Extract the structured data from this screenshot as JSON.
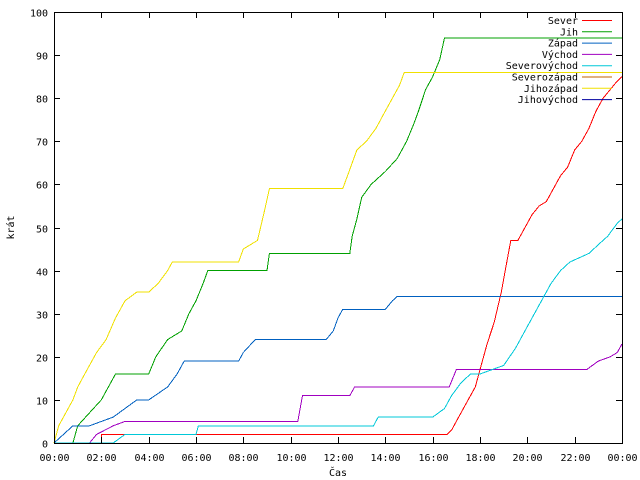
{
  "chart_data": {
    "type": "line",
    "title": "",
    "xlabel": "Čas",
    "ylabel": "krát",
    "xlim": [
      0,
      24
    ],
    "ylim": [
      0,
      100
    ],
    "yticks": [
      0,
      10,
      20,
      30,
      40,
      50,
      60,
      70,
      80,
      90,
      100
    ],
    "xticks": [
      {
        "x": 0,
        "label": "00:00"
      },
      {
        "x": 2,
        "label": "02:00"
      },
      {
        "x": 4,
        "label": "04:00"
      },
      {
        "x": 6,
        "label": "06:00"
      },
      {
        "x": 8,
        "label": "08:00"
      },
      {
        "x": 10,
        "label": "10:00"
      },
      {
        "x": 12,
        "label": "12:00"
      },
      {
        "x": 14,
        "label": "14:00"
      },
      {
        "x": 16,
        "label": "16:00"
      },
      {
        "x": 18,
        "label": "18:00"
      },
      {
        "x": 20,
        "label": "20:00"
      },
      {
        "x": 22,
        "label": "22:00"
      },
      {
        "x": 24,
        "label": "00:00"
      }
    ],
    "grid": false,
    "legend_position": "top-right",
    "series": [
      {
        "name": "Sever",
        "color": "#ff0000",
        "x": [
          0.0,
          2.0,
          2.0,
          16.6,
          16.8,
          17.0,
          17.3,
          17.6,
          17.8,
          18.0,
          18.3,
          18.6,
          18.9,
          19.1,
          19.3,
          19.6,
          19.9,
          20.2,
          20.5,
          20.8,
          21.1,
          21.4,
          21.7,
          22.0,
          22.3,
          22.6,
          22.9,
          23.2,
          23.5,
          23.8,
          24.0
        ],
        "y": [
          0,
          0,
          2,
          2,
          3,
          5,
          8,
          11,
          13,
          17,
          23,
          28,
          35,
          41,
          47,
          47,
          50,
          53,
          55,
          56,
          59,
          62,
          64,
          68,
          70,
          73,
          77,
          80,
          82,
          84,
          85
        ]
      },
      {
        "name": "Jih",
        "color": "#00a000",
        "x": [
          0.0,
          0.8,
          1.0,
          1.5,
          2.0,
          2.6,
          4.0,
          4.3,
          4.8,
          5.4,
          5.7,
          6.0,
          6.3,
          6.5,
          9.0,
          9.1,
          12.5,
          12.6,
          12.8,
          13.0,
          13.4,
          13.8,
          14.0,
          14.5,
          14.9,
          15.2,
          15.4,
          15.7,
          16.0,
          16.3,
          16.5,
          24.0
        ],
        "y": [
          0,
          0,
          4,
          7,
          10,
          16,
          16,
          20,
          24,
          26,
          30,
          33,
          37,
          40,
          40,
          44,
          44,
          48,
          52,
          57,
          60,
          62,
          63,
          66,
          70,
          74,
          77,
          82,
          85,
          89,
          94,
          94
        ]
      },
      {
        "name": "Západ",
        "color": "#0060c0",
        "x": [
          0.0,
          0.4,
          0.8,
          1.5,
          2.5,
          3.0,
          3.5,
          4.0,
          4.8,
          5.2,
          5.5,
          7.8,
          8.0,
          8.5,
          9.0,
          11.5,
          11.8,
          12.0,
          12.2,
          14.0,
          14.3,
          14.5,
          24.0
        ],
        "y": [
          0,
          2,
          4,
          4,
          6,
          8,
          10,
          10,
          13,
          16,
          19,
          19,
          21,
          24,
          24,
          24,
          26,
          29,
          31,
          31,
          33,
          34,
          34
        ]
      },
      {
        "name": "Východ",
        "color": "#a000c0",
        "x": [
          0.0,
          1.5,
          1.8,
          2.5,
          3.0,
          10.3,
          10.5,
          12.5,
          12.7,
          14.0,
          14.3,
          16.7,
          17.0,
          22.5,
          23.0,
          23.5,
          23.8,
          24.0
        ],
        "y": [
          0,
          0,
          2,
          4,
          5,
          5,
          11,
          11,
          13,
          13,
          13,
          13,
          17,
          17,
          19,
          20,
          21,
          23
        ],
        "y_adjusted_note": ""
      },
      {
        "name": "Severovýchod",
        "color": "#00c8d8",
        "x": [
          0.0,
          2.5,
          3.0,
          6.0,
          6.1,
          13.5,
          13.7,
          16.0,
          16.5,
          16.8,
          17.2,
          17.6,
          18.0,
          19.0,
          19.5,
          20.0,
          20.3,
          20.6,
          21.0,
          21.4,
          21.8,
          22.2,
          22.6,
          23.0,
          23.4,
          23.8,
          24.0
        ],
        "y": [
          0,
          0,
          2,
          2,
          4,
          4,
          6,
          6,
          8,
          11,
          14,
          16,
          16,
          18,
          22,
          27,
          30,
          33,
          37,
          40,
          42,
          43,
          44,
          46,
          48,
          51,
          52
        ]
      },
      {
        "name": "Severozápad",
        "color": "#c06000",
        "x": [],
        "y": []
      },
      {
        "name": "Jihozápad",
        "color": "#f0e000",
        "x": [
          0.0,
          0.2,
          0.5,
          0.8,
          1.0,
          1.4,
          1.8,
          2.2,
          2.6,
          3.0,
          3.5,
          4.0,
          4.4,
          4.8,
          5.0,
          5.2,
          7.8,
          8.0,
          8.6,
          8.9,
          9.1,
          12.2,
          12.4,
          12.8,
          13.2,
          13.6,
          14.0,
          14.3,
          14.6,
          14.8,
          16.0,
          24.0
        ],
        "y": [
          0,
          4,
          7,
          10,
          13,
          17,
          21,
          24,
          29,
          33,
          35,
          35,
          37,
          40,
          42,
          42,
          42,
          45,
          47,
          54,
          59,
          59,
          62,
          68,
          70,
          73,
          77,
          80,
          83,
          86,
          86,
          86
        ]
      },
      {
        "name": "Jihovýchod",
        "color": "#0000a0",
        "x": [],
        "y": []
      }
    ]
  }
}
